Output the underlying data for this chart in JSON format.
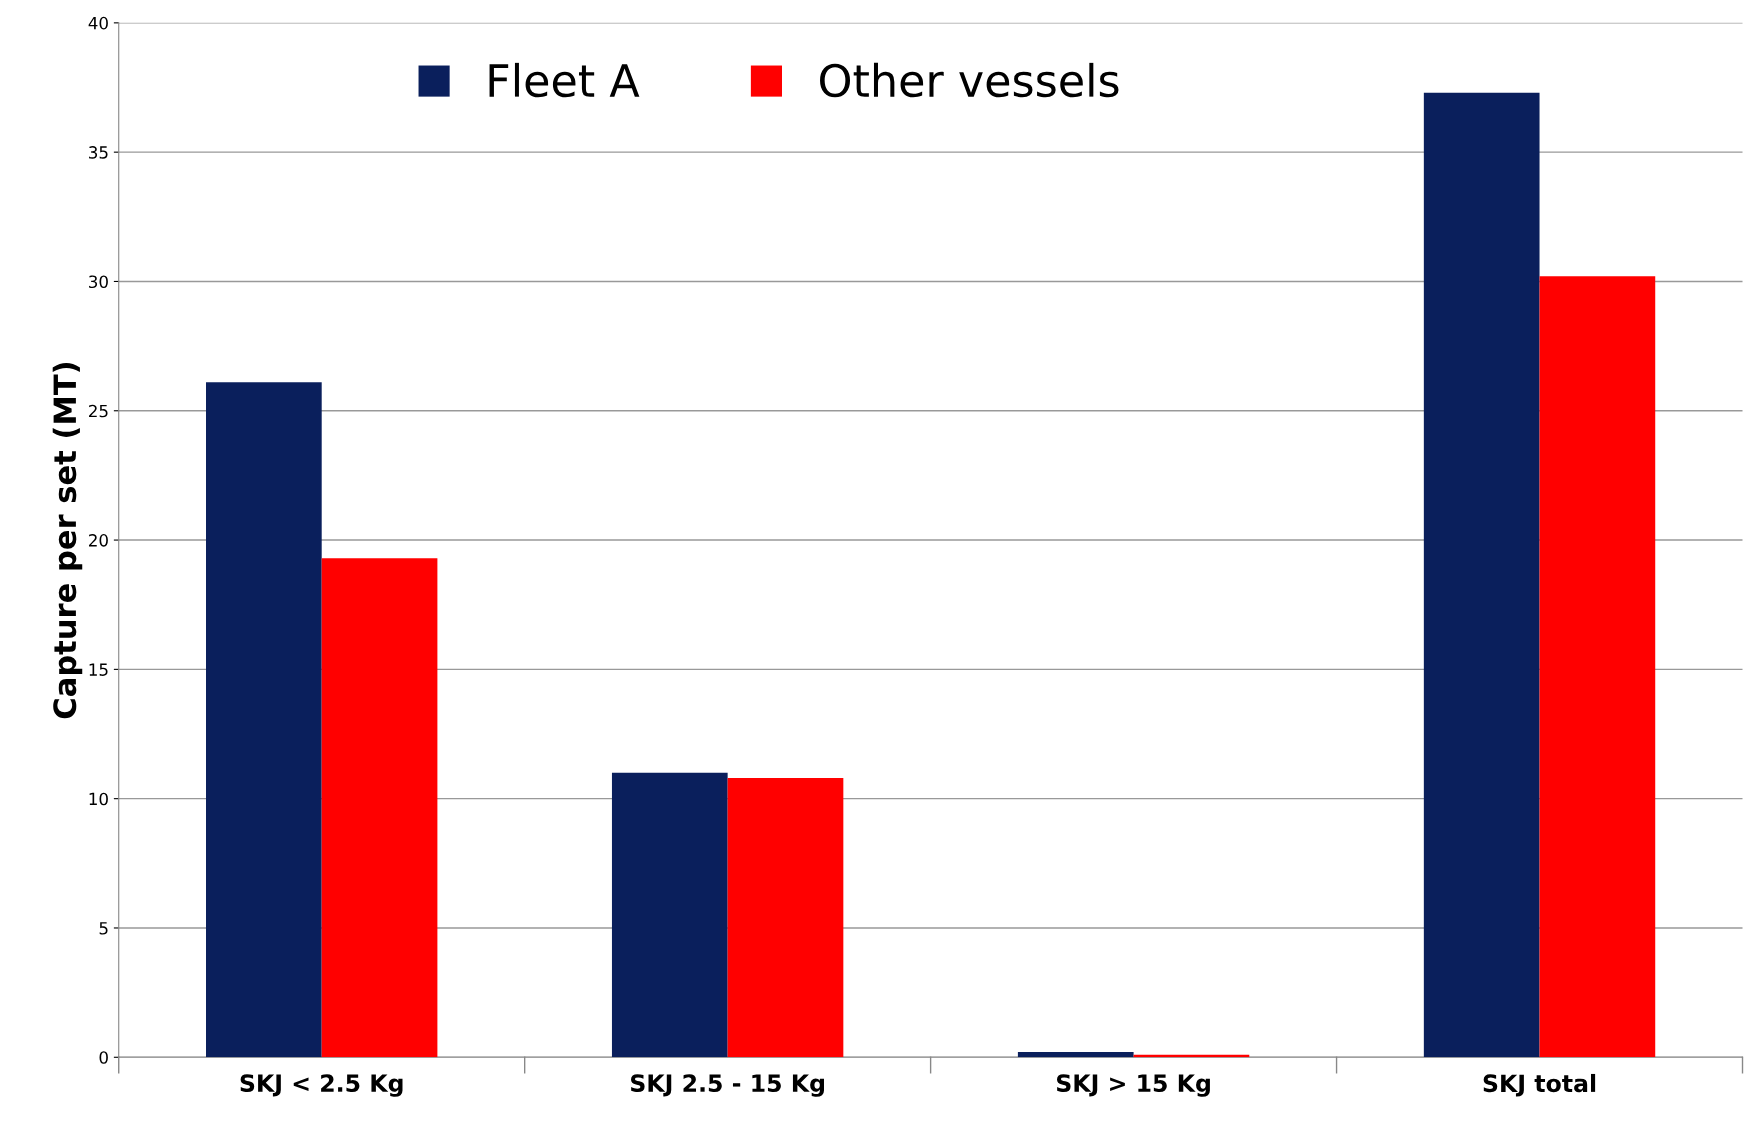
{
  "chart_data": {
    "type": "bar",
    "ylabel": "Capture per set (MT)",
    "categories": [
      "SKJ < 2.5 Kg",
      "SKJ 2.5 - 15 Kg",
      "SKJ > 15 Kg",
      "SKJ total"
    ],
    "series": [
      {
        "name": "Fleet A",
        "color": "#0a1f5c",
        "values": [
          26.1,
          11.0,
          0.2,
          37.3
        ]
      },
      {
        "name": "Other vessels",
        "color": "#ff0000",
        "values": [
          19.3,
          10.8,
          0.1,
          30.2
        ]
      }
    ],
    "ylim": [
      0,
      40
    ],
    "yticks": [
      0,
      5,
      10,
      15,
      20,
      25,
      30,
      35,
      40
    ],
    "grid": "y",
    "legend": "top left"
  }
}
